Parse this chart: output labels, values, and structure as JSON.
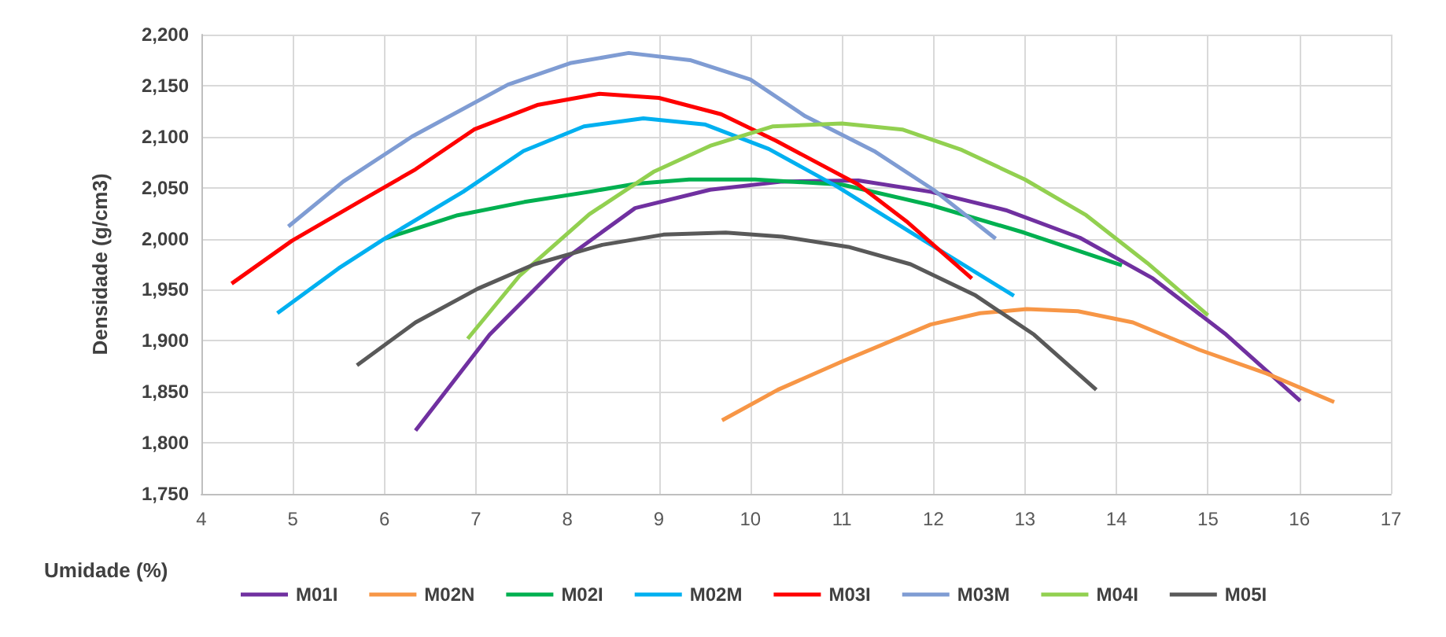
{
  "chart_data": {
    "type": "line",
    "xlabel": "Umidade (%)",
    "ylabel": "Densidade (g/cm3)",
    "xlim": [
      4,
      17
    ],
    "xticks": [
      4,
      5,
      6,
      7,
      8,
      9,
      10,
      11,
      12,
      13,
      14,
      15,
      16,
      17
    ],
    "ylim": [
      1750,
      2200
    ],
    "yticks": [
      {
        "value": 1750,
        "label": "1,750"
      },
      {
        "value": 1800,
        "label": "1,800"
      },
      {
        "value": 1850,
        "label": "1,850"
      },
      {
        "value": 1900,
        "label": "1,900"
      },
      {
        "value": 1950,
        "label": "1,950"
      },
      {
        "value": 2000,
        "label": "2,000"
      },
      {
        "value": 2050,
        "label": "2,050"
      },
      {
        "value": 2100,
        "label": "2,100"
      },
      {
        "value": 2150,
        "label": "2,150"
      },
      {
        "value": 2200,
        "label": "2,200"
      }
    ],
    "grid": true,
    "legend": "bottom",
    "marker": "none",
    "line_style": "solid",
    "series": [
      {
        "name": "M01I",
        "color": "#7030a0",
        "x": [
          6.34,
          7.15,
          7.97,
          8.74,
          9.56,
          10.35,
          11.18,
          11.97,
          12.79,
          13.6,
          14.4,
          15.2,
          16.01
        ],
        "values": [
          1812,
          1906,
          1980,
          2030,
          2048,
          2056,
          2057,
          2046,
          2028,
          2001,
          1961,
          1906,
          1841
        ]
      },
      {
        "name": "M02N",
        "color": "#f79646",
        "x": [
          9.69,
          10.3,
          11.01,
          11.97,
          12.51,
          13.02,
          13.58,
          14.18,
          14.91,
          15.64,
          16.38
        ],
        "values": [
          1822,
          1852,
          1880,
          1916,
          1927,
          1931,
          1929,
          1918,
          1891,
          1868,
          1840
        ]
      },
      {
        "name": "M02I",
        "color": "#00b050",
        "x": [
          6.0,
          6.8,
          7.53,
          8.24,
          8.76,
          9.33,
          10.05,
          11.0,
          11.97,
          12.99,
          14.06
        ],
        "values": [
          2000,
          2023,
          2036,
          2046,
          2054,
          2058,
          2058,
          2053,
          2033,
          2006,
          1974
        ]
      },
      {
        "name": "M02M",
        "color": "#00b0f0",
        "x": [
          4.83,
          5.5,
          6.0,
          6.86,
          7.52,
          8.18,
          8.83,
          9.5,
          10.2,
          10.95,
          11.72,
          12.88
        ],
        "values": [
          1927,
          1971,
          2000,
          2046,
          2086,
          2110,
          2118,
          2112,
          2088,
          2051,
          2008,
          1944
        ]
      },
      {
        "name": "M03I",
        "color": "#ff0000",
        "x": [
          4.33,
          4.99,
          5.72,
          6.34,
          6.98,
          7.67,
          8.35,
          9.0,
          9.68,
          10.28,
          11.18,
          11.72,
          12.42
        ],
        "values": [
          1956,
          1998,
          2036,
          2068,
          2107,
          2131,
          2142,
          2138,
          2122,
          2096,
          2053,
          2016,
          1961
        ]
      },
      {
        "name": "M03M",
        "color": "#7f9cd3",
        "x": [
          4.95,
          5.55,
          6.3,
          7.35,
          8.03,
          8.67,
          9.34,
          10.0,
          10.6,
          11.35,
          12.0,
          12.68
        ],
        "values": [
          2012,
          2056,
          2100,
          2151,
          2172,
          2182,
          2175,
          2156,
          2120,
          2086,
          2048,
          2000
        ]
      },
      {
        "name": "M04I",
        "color": "#92d050",
        "x": [
          6.91,
          7.48,
          8.24,
          8.95,
          9.56,
          10.24,
          11.0,
          11.66,
          12.31,
          13.0,
          13.67,
          14.34,
          15.0
        ],
        "values": [
          1902,
          1964,
          2024,
          2066,
          2091,
          2110,
          2113,
          2107,
          2087,
          2058,
          2023,
          1976,
          1925
        ]
      },
      {
        "name": "M05I",
        "color": "#595959",
        "x": [
          5.7,
          6.34,
          7.02,
          7.64,
          8.38,
          9.05,
          9.73,
          10.35,
          11.07,
          11.75,
          12.45,
          13.1,
          13.78
        ],
        "values": [
          1876,
          1918,
          1951,
          1975,
          1994,
          2004,
          2006,
          2002,
          1992,
          1975,
          1945,
          1906,
          1852
        ]
      }
    ]
  }
}
